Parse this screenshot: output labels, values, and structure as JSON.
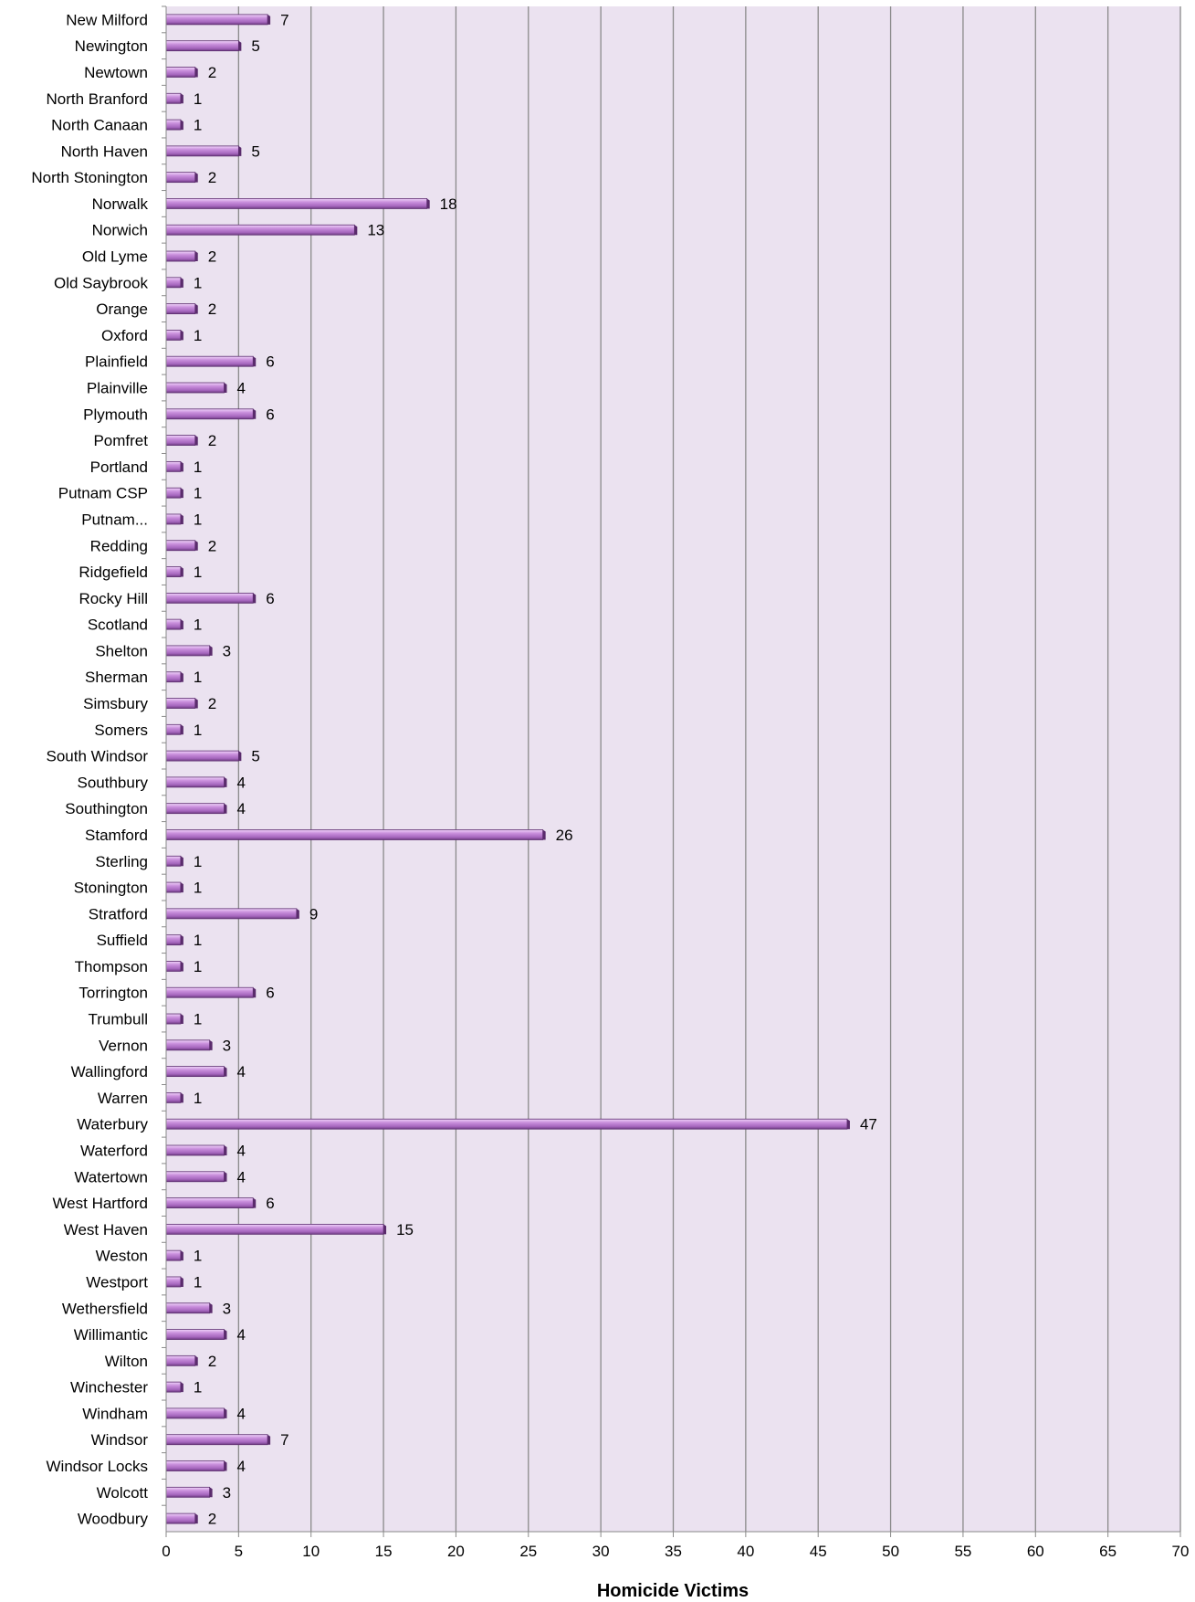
{
  "chart_data": {
    "type": "bar",
    "orientation": "horizontal",
    "xlabel": "Homicide Victims",
    "ylabel": "",
    "xlim": [
      0,
      70
    ],
    "xticks": [
      0,
      5,
      10,
      15,
      20,
      25,
      30,
      35,
      40,
      45,
      50,
      55,
      60,
      65,
      70
    ],
    "grid": "vertical",
    "legend": "none",
    "colors": {
      "plot_bg": "#ebe2f0",
      "bar": "#b57cc9",
      "bar_light": "#e2bdf0",
      "bar_dark": "#6e3a82",
      "grid": "#8a8a8a"
    },
    "categories": [
      "New Milford",
      "Newington",
      "Newtown",
      "North Branford",
      "North Canaan",
      "North Haven",
      "North Stonington",
      "Norwalk",
      "Norwich",
      "Old Lyme",
      "Old Saybrook",
      "Orange",
      "Oxford",
      "Plainfield",
      "Plainville",
      "Plymouth",
      "Pomfret",
      "Portland",
      "Putnam CSP",
      "Putnam...",
      "Redding",
      "Ridgefield",
      "Rocky Hill",
      "Scotland",
      "Shelton",
      "Sherman",
      "Simsbury",
      "Somers",
      "South Windsor",
      "Southbury",
      "Southington",
      "Stamford",
      "Sterling",
      "Stonington",
      "Stratford",
      "Suffield",
      "Thompson",
      "Torrington",
      "Trumbull",
      "Vernon",
      "Wallingford",
      "Warren",
      "Waterbury",
      "Waterford",
      "Watertown",
      "West Hartford",
      "West Haven",
      "Weston",
      "Westport",
      "Wethersfield",
      "Willimantic",
      "Wilton",
      "Winchester",
      "Windham",
      "Windsor",
      "Windsor Locks",
      "Wolcott",
      "Woodbury"
    ],
    "values": [
      7,
      5,
      2,
      1,
      1,
      5,
      2,
      18,
      13,
      2,
      1,
      2,
      1,
      6,
      4,
      6,
      2,
      1,
      1,
      1,
      2,
      1,
      6,
      1,
      3,
      1,
      2,
      1,
      5,
      4,
      4,
      26,
      1,
      1,
      9,
      1,
      1,
      6,
      1,
      3,
      4,
      1,
      47,
      4,
      4,
      6,
      15,
      1,
      1,
      3,
      4,
      2,
      1,
      4,
      7,
      4,
      3,
      2
    ]
  }
}
